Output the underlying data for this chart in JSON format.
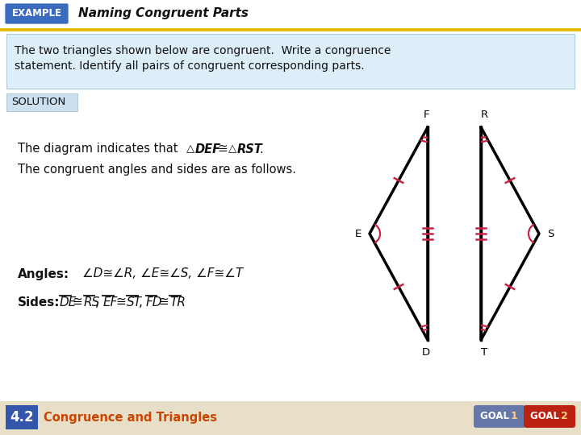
{
  "title": "Naming Congruent Parts",
  "example_bg": "#3a6bbf",
  "example_text": "EXAMPLE",
  "yellow_line_color": "#e8b800",
  "problem_bg": "#ddeef8",
  "problem_text_line1": "The two triangles shown below are congruent.  Write a congruence",
  "problem_text_line2": "statement. Identify all pairs of congruent corresponding parts.",
  "solution_label": "SOLUTION",
  "solution_bg": "#cce0f0",
  "body_bg": "#ffffff",
  "footer_bg": "#e8dfc8",
  "footer_text": "Congruence and Triangles",
  "footer_num": "4.2",
  "footer_num_bg": "#3355aa",
  "footer_text_color": "#cc4400",
  "goal1_bg": "#7788bb",
  "goal2_bg": "#aa2211",
  "mark_color": "#cc2244",
  "triangle_color": "#000000"
}
